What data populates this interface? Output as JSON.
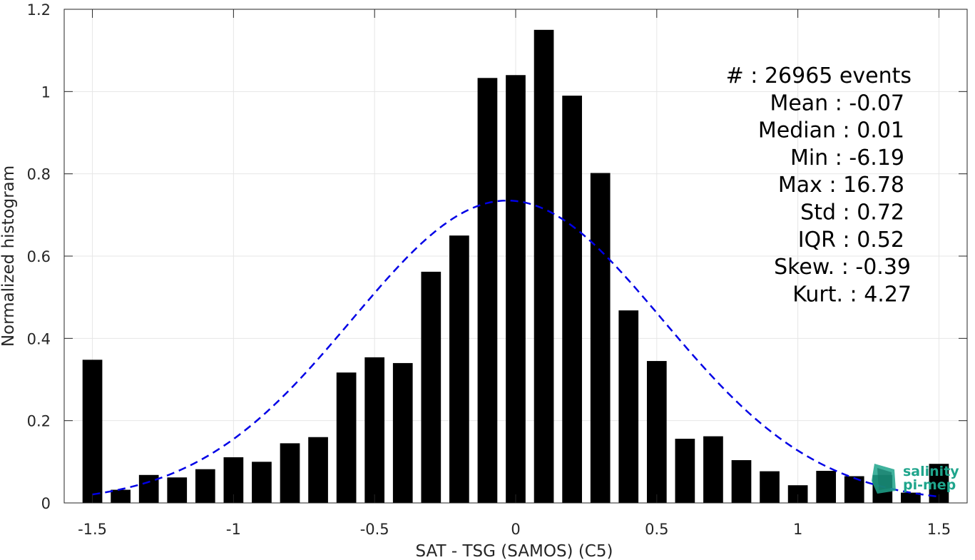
{
  "chart_data": {
    "type": "bar",
    "xlabel": "SAT - TSG (SAMOS) (C5)",
    "ylabel": "Normalized histogram",
    "xlim": [
      -1.6,
      1.6
    ],
    "ylim": [
      0,
      1.2
    ],
    "grid": true,
    "bar_width": 0.07,
    "x_ticks": [
      -1.5,
      -1,
      -0.5,
      0,
      0.5,
      1,
      1.5
    ],
    "x_tick_labels": [
      "-1.5",
      "-1",
      "-0.5",
      "0",
      "0.5",
      "1",
      "1.5"
    ],
    "y_ticks": [
      0,
      0.2,
      0.4,
      0.6,
      0.8,
      1,
      1.2
    ],
    "y_tick_labels": [
      "0",
      "0.2",
      "0.4",
      "0.6",
      "0.8",
      "1",
      "1.2"
    ],
    "x": [
      -1.5,
      -1.4,
      -1.3,
      -1.2,
      -1.1,
      -1.0,
      -0.9,
      -0.8,
      -0.7,
      -0.6,
      -0.5,
      -0.4,
      -0.3,
      -0.2,
      -0.1,
      0.0,
      0.1,
      0.2,
      0.3,
      0.4,
      0.5,
      0.6,
      0.7,
      0.8,
      0.9,
      1.0,
      1.1,
      1.2,
      1.3,
      1.4,
      1.5
    ],
    "values": [
      0.348,
      0.032,
      0.068,
      0.062,
      0.082,
      0.111,
      0.1,
      0.145,
      0.16,
      0.317,
      0.354,
      0.34,
      0.562,
      0.65,
      1.033,
      1.04,
      1.15,
      0.99,
      0.802,
      0.468,
      0.345,
      0.156,
      0.162,
      0.104,
      0.077,
      0.043,
      0.078,
      0.065,
      0.068,
      0.025,
      0.095
    ],
    "fit": {
      "type": "gaussian",
      "mean": -0.03,
      "std": 0.55,
      "peak": 0.735,
      "x_range": [
        -1.5,
        1.5
      ],
      "color": "#0000e6",
      "style": "dashed"
    },
    "bar_color": "#000000",
    "stats": [
      "#  : 26965 events",
      "Mean : -0.07",
      "Median : 0.01",
      "Min : -6.19",
      "Max : 16.78",
      "Std : 0.72",
      "IQR : 0.52",
      "Skew. : -0.39",
      "Kurt. : 4.27"
    ]
  },
  "logo": {
    "line1": "salinity",
    "line2": "pi-mep",
    "color": "#1fa58c"
  }
}
